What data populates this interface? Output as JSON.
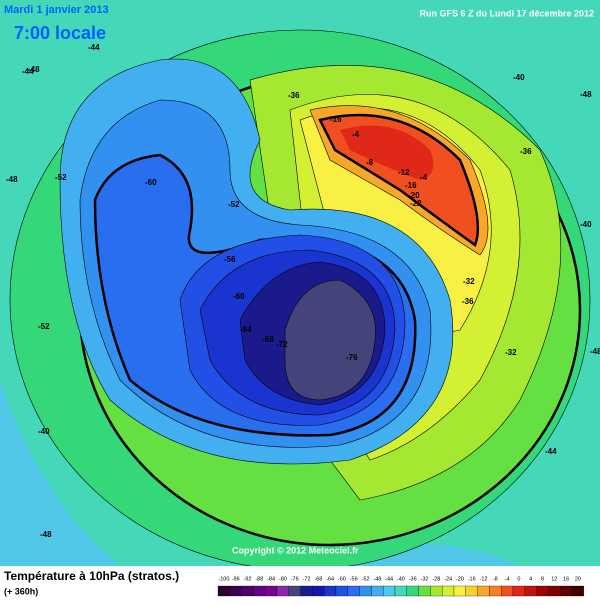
{
  "header": {
    "date": "Mardi 1 janvier 2013",
    "time": "7:00 locale",
    "run": "Run GFS 6 Z du Lundi 17 décembre 2012"
  },
  "map": {
    "contour_labels": [
      -48,
      -44,
      -48,
      -44,
      -52,
      -60,
      -52,
      -56,
      -60,
      -64,
      -68,
      -72,
      -76,
      -52,
      -40,
      -36,
      -16,
      -4,
      -8,
      -12,
      -4,
      -16,
      -20,
      -22,
      -32,
      -36,
      -32,
      -36,
      -40,
      -44,
      -48,
      -48,
      -40,
      -48
    ]
  },
  "copyright": "Copyright © 2012 Meteociel.fr",
  "footer": {
    "title": "Température à 10hPa (stratos.)",
    "subtitle": "(+ 360h)",
    "scale": {
      "values": [
        -100,
        -96,
        -92,
        -88,
        -84,
        -80,
        -76,
        -72,
        -68,
        -64,
        -60,
        -56,
        -52,
        -48,
        -44,
        -40,
        -36,
        -32,
        -28,
        -24,
        -20,
        -16,
        -12,
        -8,
        -4,
        0,
        4,
        8,
        12,
        16,
        20
      ],
      "colors": [
        "#2a0030",
        "#3c0050",
        "#50006a",
        "#660080",
        "#7a0096",
        "#8a2aa6",
        "#44447a",
        "#1a1a8c",
        "#1414b0",
        "#1a34d0",
        "#2250e6",
        "#2a6ef0",
        "#3290f0",
        "#42b0f0",
        "#52c8e8",
        "#44d8b8",
        "#34d878",
        "#64e042",
        "#a4e832",
        "#d4f032",
        "#f8f042",
        "#f8d032",
        "#f8a828",
        "#f88020",
        "#f05020",
        "#e02818",
        "#c01010",
        "#a00000",
        "#800000",
        "#600000",
        "#400000"
      ]
    }
  }
}
